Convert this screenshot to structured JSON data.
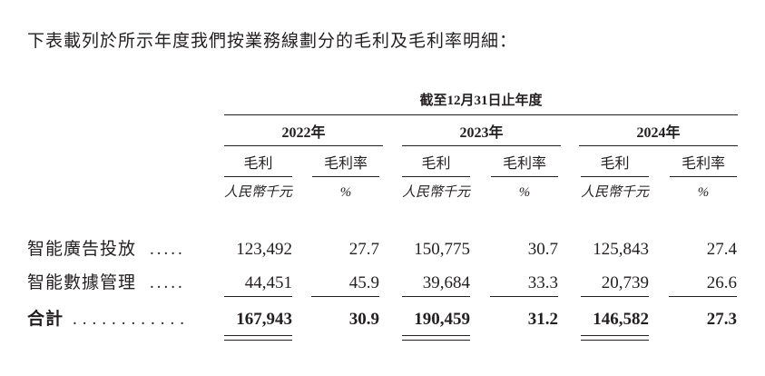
{
  "intro": "下表載列於所示年度我們按業務線劃分的毛利及毛利率明細：",
  "table": {
    "period_header": "截至12月31日止年度",
    "years": [
      {
        "label": "2022年",
        "headers": [
          "毛利",
          "毛利率"
        ],
        "units": [
          "人民幣千元",
          "%"
        ]
      },
      {
        "label": "2023年",
        "headers": [
          "毛利",
          "毛利率"
        ],
        "units": [
          "人民幣千元",
          "%"
        ]
      },
      {
        "label": "2024年",
        "headers": [
          "毛利",
          "毛利率"
        ],
        "units": [
          "人民幣千元",
          "%"
        ]
      }
    ],
    "rows": [
      {
        "label": "智能廣告投放",
        "leader": ".....",
        "cells": [
          "123,492",
          "27.7",
          "150,775",
          "30.7",
          "125,843",
          "27.4"
        ]
      },
      {
        "label": "智能數據管理",
        "leader": ".....",
        "cells": [
          "44,451",
          "45.9",
          "39,684",
          "33.3",
          "20,739",
          "26.6"
        ]
      },
      {
        "label": "合計",
        "leader": "............",
        "cells": [
          "167,943",
          "30.9",
          "190,459",
          "31.2",
          "146,582",
          "27.3"
        ],
        "total": true
      }
    ]
  }
}
